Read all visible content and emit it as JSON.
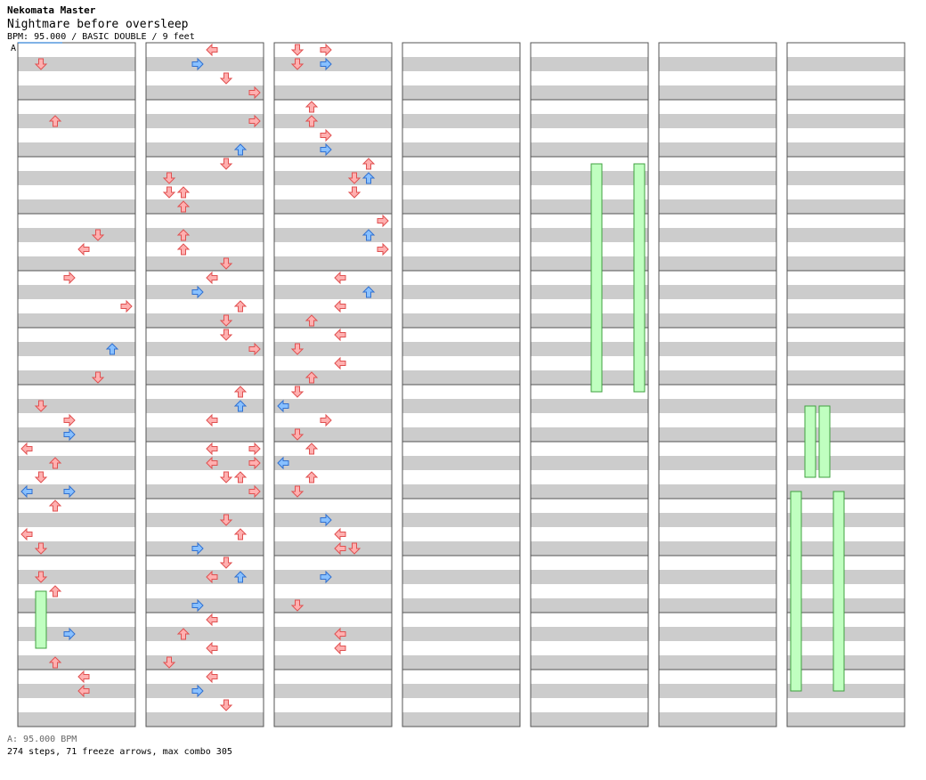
{
  "header": {
    "game": "Nekomata Master",
    "song": "Nightmare before oversleep",
    "info": "BPM: 95.000 / BASIC DOUBLE / 9 feet"
  },
  "bpm_marker": "A",
  "footer": {
    "bpm_legend": "A: 95.000 BPM",
    "stats": "274 steps, 71 freeze arrows, max combo 305"
  },
  "colors": {
    "stripe_light": "#ffffff",
    "stripe_dark": "#cccccc",
    "arrow_red": "#ffb0b0",
    "arrow_red_border": "#e05050",
    "arrow_blue": "#88c0ff",
    "arrow_blue_border": "#3070d0",
    "arrow_pink": "#ffc0f0",
    "freeze_fill": "#c0ffc0",
    "freeze_border": "#40a040"
  },
  "chart_data": {
    "type": "step-chart",
    "lanes": [
      "p1-left",
      "p1-down",
      "p1-up",
      "p1-right",
      "p2-left",
      "p2-down",
      "p2-up",
      "p2-right"
    ],
    "columns": 7,
    "measures_per_column": 12,
    "steps": [
      [
        [
          1,
          1
        ],
        [
          5,
          2
        ],
        [
          13,
          5
        ],
        [
          14,
          4
        ],
        [
          16,
          3
        ],
        [
          18,
          7
        ],
        [
          21,
          6
        ],
        [
          23,
          5
        ],
        [
          25,
          1
        ],
        [
          26,
          3
        ],
        [
          27,
          3
        ],
        [
          28,
          0
        ],
        [
          29,
          2
        ],
        [
          30,
          1
        ],
        [
          31,
          0
        ],
        [
          31,
          3
        ],
        [
          32,
          2
        ],
        [
          34,
          0
        ],
        [
          35,
          1
        ],
        [
          37,
          1
        ],
        [
          38,
          2
        ],
        [
          41,
          3
        ],
        [
          43,
          2
        ],
        [
          44,
          4
        ],
        [
          45,
          4
        ],
        [
          48,
          1
        ],
        [
          49,
          3
        ],
        [
          50,
          5
        ],
        [
          51,
          5
        ],
        [
          52,
          1
        ],
        [
          53,
          4
        ],
        [
          54,
          0
        ],
        [
          56,
          3
        ],
        [
          57,
          1
        ],
        [
          58,
          4
        ],
        [
          60,
          3
        ],
        [
          61,
          4
        ],
        [
          62,
          2
        ]
      ],
      [
        [
          0,
          4
        ],
        [
          1,
          3
        ],
        [
          2,
          5
        ],
        [
          3,
          7
        ],
        [
          5,
          7
        ],
        [
          7,
          6
        ],
        [
          8,
          5
        ],
        [
          9,
          1
        ],
        [
          10,
          1
        ],
        [
          10,
          2
        ],
        [
          11,
          2
        ],
        [
          13,
          2
        ],
        [
          14,
          2
        ],
        [
          15,
          5
        ],
        [
          16,
          4
        ],
        [
          17,
          3
        ],
        [
          18,
          6
        ],
        [
          19,
          5
        ],
        [
          20,
          5
        ],
        [
          21,
          7
        ],
        [
          24,
          6
        ],
        [
          25,
          6
        ],
        [
          26,
          4
        ],
        [
          28,
          4
        ],
        [
          28,
          7
        ],
        [
          29,
          4
        ],
        [
          29,
          7
        ],
        [
          30,
          5
        ],
        [
          30,
          6
        ],
        [
          31,
          7
        ],
        [
          33,
          5
        ],
        [
          34,
          6
        ],
        [
          35,
          3
        ],
        [
          36,
          5
        ],
        [
          37,
          4
        ],
        [
          37,
          6
        ],
        [
          39,
          3
        ],
        [
          40,
          4
        ],
        [
          41,
          2
        ],
        [
          42,
          4
        ],
        [
          43,
          1
        ],
        [
          44,
          4
        ],
        [
          45,
          3
        ],
        [
          46,
          5
        ],
        [
          48,
          2
        ],
        [
          49,
          1
        ],
        [
          50,
          1
        ]
      ],
      [
        [
          0,
          1
        ],
        [
          0,
          3
        ],
        [
          1,
          1
        ],
        [
          1,
          3
        ],
        [
          4,
          2
        ],
        [
          5,
          2
        ],
        [
          6,
          3
        ],
        [
          7,
          3
        ],
        [
          8,
          6
        ],
        [
          9,
          5
        ],
        [
          9,
          6
        ],
        [
          10,
          5
        ],
        [
          12,
          7
        ],
        [
          13,
          6
        ],
        [
          14,
          7
        ],
        [
          16,
          4
        ],
        [
          17,
          6
        ],
        [
          18,
          4
        ],
        [
          19,
          2
        ],
        [
          20,
          4
        ],
        [
          21,
          1
        ],
        [
          22,
          4
        ],
        [
          23,
          2
        ],
        [
          24,
          1
        ],
        [
          25,
          0
        ],
        [
          26,
          3
        ],
        [
          27,
          1
        ],
        [
          28,
          2
        ],
        [
          29,
          0
        ],
        [
          30,
          2
        ],
        [
          31,
          1
        ],
        [
          33,
          3
        ],
        [
          34,
          4
        ],
        [
          35,
          4
        ],
        [
          35,
          5
        ],
        [
          37,
          3
        ],
        [
          39,
          1
        ],
        [
          41,
          4
        ],
        [
          42,
          4
        ]
      ]
    ],
    "freeze_count": 71,
    "step_count": 274,
    "max_combo": 305
  }
}
